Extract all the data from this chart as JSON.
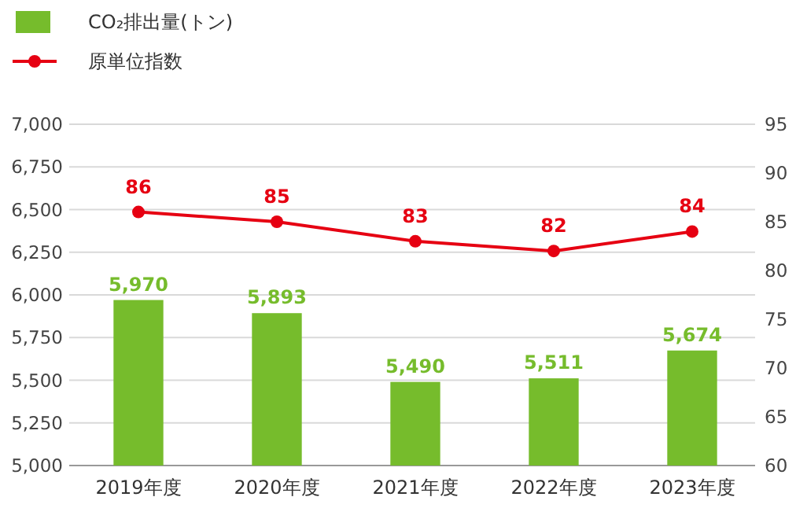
{
  "chart_data": {
    "type": "bar",
    "categories": [
      "2019年度",
      "2020年度",
      "2021年度",
      "2022年度",
      "2023年度"
    ],
    "series": [
      {
        "name": "CO₂排出量(トン)",
        "color": "#76bc2c",
        "values": [
          5970,
          5893,
          5490,
          5511,
          5674
        ],
        "value_labels": [
          "5,970",
          "5,893",
          "5,490",
          "5,511",
          "5,674"
        ]
      },
      {
        "name": "原単位指数",
        "type": "line",
        "axis": "y2",
        "color": "#e60012",
        "values": [
          86,
          85,
          83,
          82,
          84
        ]
      }
    ],
    "ylim": [
      5000,
      7000
    ],
    "yticks": [
      {
        "value": 5000,
        "label": "5,000"
      },
      {
        "value": 5250,
        "label": "5,250"
      },
      {
        "value": 5500,
        "label": "5,500"
      },
      {
        "value": 5750,
        "label": "5,750"
      },
      {
        "value": 6000,
        "label": "6,000"
      },
      {
        "value": 6250,
        "label": "6,250"
      },
      {
        "value": 6500,
        "label": "6,500"
      },
      {
        "value": 6750,
        "label": "6,750"
      },
      {
        "value": 7000,
        "label": "7,000"
      }
    ],
    "y2lim": [
      60,
      95
    ],
    "y2ticks": [
      60,
      65,
      70,
      75,
      80,
      85,
      90,
      95
    ],
    "grid": "y",
    "legend": "top left",
    "marker": "circle",
    "line_style": "solid",
    "data_labels": true
  }
}
